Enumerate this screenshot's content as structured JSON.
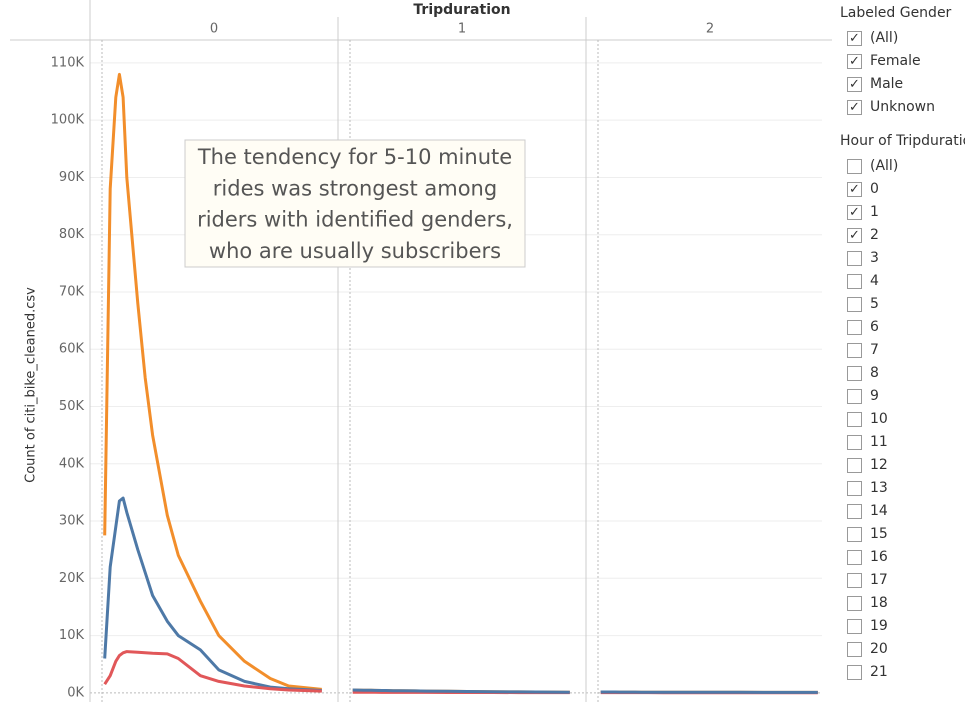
{
  "chart_data": {
    "type": "line",
    "title": "Tripduration",
    "y_label": "Count of citi_bike_cleaned.csv",
    "annotation": [
      "The tendency for 5-10 minute",
      "rides was strongest among",
      "riders with identified genders,",
      "who are usually subscribers"
    ],
    "ylim": [
      -1600,
      114000
    ],
    "yticks": [
      {
        "value": 0,
        "label": "0K"
      },
      {
        "value": 10000,
        "label": "10K"
      },
      {
        "value": 20000,
        "label": "20K"
      },
      {
        "value": 30000,
        "label": "30K"
      },
      {
        "value": 40000,
        "label": "40K"
      },
      {
        "value": 50000,
        "label": "50K"
      },
      {
        "value": 60000,
        "label": "60K"
      },
      {
        "value": 70000,
        "label": "70K"
      },
      {
        "value": 80000,
        "label": "80K"
      },
      {
        "value": 90000,
        "label": "90K"
      },
      {
        "value": 100000,
        "label": "100K"
      },
      {
        "value": 110000,
        "label": "110K"
      }
    ],
    "xlim": [
      -4,
      63.4
    ],
    "grid": true,
    "x": [
      0,
      1.5,
      3,
      4,
      5,
      6,
      9,
      11,
      13,
      17,
      20,
      26,
      31,
      38,
      45,
      50,
      59
    ],
    "panels": [
      {
        "label": "0",
        "series": [
          {
            "color": "#f28e2b",
            "values": [
              27500,
              88000,
              104000,
              108000,
              104000,
              90000,
              68000,
              55000,
              45000,
              31000,
              24000,
              16000,
              10000,
              5500,
              2500,
              1200,
              600
            ]
          },
          {
            "color": "#4e79a7",
            "values": [
              6000,
              22000,
              29000,
              33500,
              34000,
              31500,
              25000,
              21000,
              17000,
              12500,
              10000,
              7500,
              4000,
              2000,
              1000,
              700,
              400
            ]
          },
          {
            "color": "#e15759",
            "values": [
              1500,
              3000,
              5500,
              6500,
              7000,
              7200,
              7100,
              7000,
              6900,
              6800,
              6000,
              3000,
              2000,
              1200,
              700,
              500,
              300
            ]
          }
        ]
      },
      {
        "label": "1",
        "series": [
          {
            "color": "#f28e2b",
            "values": [
              500,
              480,
              460,
              450,
              440,
              420,
              400,
              380,
              360,
              330,
              300,
              260,
              230,
              200,
              170,
              150,
              120
            ]
          },
          {
            "color": "#e15759",
            "values": [
              100,
              100,
              95,
              95,
              90,
              90,
              85,
              80,
              80,
              75,
              70,
              65,
              60,
              55,
              50,
              50,
              45
            ]
          },
          {
            "color": "#4e79a7",
            "values": [
              500,
              480,
              460,
              450,
              440,
              420,
              400,
              380,
              360,
              330,
              300,
              260,
              230,
              200,
              170,
              150,
              120
            ]
          }
        ]
      },
      {
        "label": "2",
        "series": [
          {
            "color": "#f28e2b",
            "values": [
              150,
              145,
              140,
              140,
              135,
              130,
              125,
              120,
              115,
              110,
              105,
              100,
              95,
              90,
              85,
              80,
              75
            ]
          },
          {
            "color": "#e15759",
            "values": [
              40,
              40,
              40,
              38,
              38,
              36,
              35,
              34,
              33,
              32,
              30,
              28,
              27,
              26,
              25,
              24,
              22
            ]
          },
          {
            "color": "#4e79a7",
            "values": [
              150,
              145,
              140,
              140,
              135,
              130,
              125,
              120,
              115,
              110,
              105,
              100,
              95,
              90,
              85,
              80,
              75
            ]
          }
        ]
      }
    ],
    "filters": [
      {
        "title": "Labeled Gender",
        "items": [
          {
            "label": "(All)",
            "checked": true
          },
          {
            "label": "Female",
            "checked": true
          },
          {
            "label": "Male",
            "checked": true
          },
          {
            "label": "Unknown",
            "checked": true
          }
        ]
      },
      {
        "title": "Hour of Tripduration",
        "items": [
          {
            "label": "(All)",
            "checked": false
          },
          {
            "label": "0",
            "checked": true
          },
          {
            "label": "1",
            "checked": true
          },
          {
            "label": "2",
            "checked": true
          },
          {
            "label": "3",
            "checked": false
          },
          {
            "label": "4",
            "checked": false
          },
          {
            "label": "5",
            "checked": false
          },
          {
            "label": "6",
            "checked": false
          },
          {
            "label": "7",
            "checked": false
          },
          {
            "label": "8",
            "checked": false
          },
          {
            "label": "9",
            "checked": false
          },
          {
            "label": "10",
            "checked": false
          },
          {
            "label": "11",
            "checked": false
          },
          {
            "label": "12",
            "checked": false
          },
          {
            "label": "13",
            "checked": false
          },
          {
            "label": "14",
            "checked": false
          },
          {
            "label": "15",
            "checked": false
          },
          {
            "label": "16",
            "checked": false
          },
          {
            "label": "17",
            "checked": false
          },
          {
            "label": "18",
            "checked": false
          },
          {
            "label": "19",
            "checked": false
          },
          {
            "label": "20",
            "checked": false
          },
          {
            "label": "21",
            "checked": false
          }
        ]
      }
    ]
  }
}
